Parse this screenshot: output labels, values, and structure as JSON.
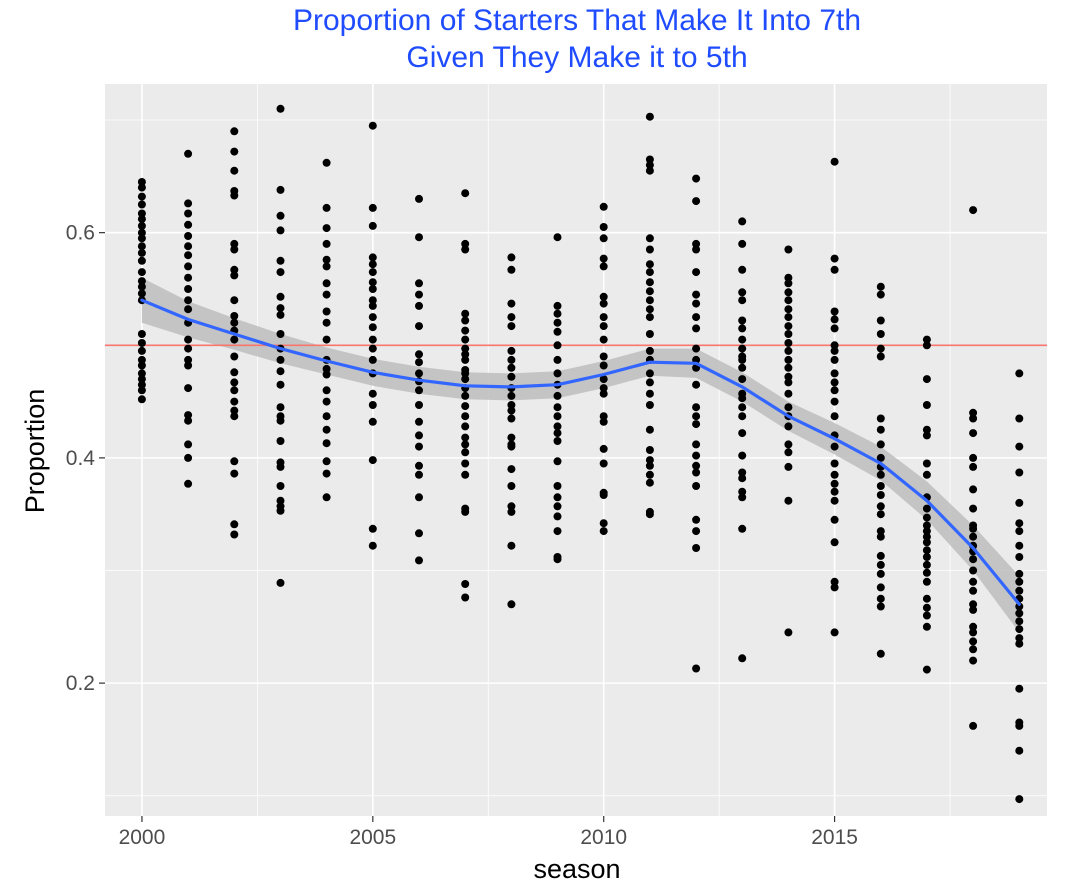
{
  "chart_data": {
    "type": "scatter",
    "title_lines": [
      "Proportion of Starters That Make It Into 7th",
      "Given They Make it to 5th"
    ],
    "xlabel": "season",
    "ylabel": "Proportion",
    "xlim": [
      1999.2,
      2019.6
    ],
    "ylim": [
      0.082,
      0.732
    ],
    "x_ticks": [
      2000,
      2005,
      2010,
      2015
    ],
    "x_tick_labels": [
      "2000",
      "2005",
      "2010",
      "2015"
    ],
    "y_ticks": [
      0.2,
      0.4,
      0.6
    ],
    "y_tick_labels": [
      "0.2",
      "0.4",
      "0.6"
    ],
    "grid": true,
    "reference_line": {
      "y": 0.5,
      "color": "#f8766d"
    },
    "colors": {
      "panel": "#ebebeb",
      "grid": "#ffffff",
      "points": "#000000",
      "smooth_line": "#3366ff",
      "confidence_band": "#bdbdbd",
      "title": "#1f4cff"
    },
    "smooth": {
      "x": [
        2000,
        2001,
        2002,
        2003,
        2004,
        2005,
        2006,
        2007,
        2008,
        2009,
        2010,
        2011,
        2012,
        2013,
        2014,
        2015,
        2016,
        2017,
        2018,
        2019
      ],
      "y": [
        0.54,
        0.523,
        0.51,
        0.497,
        0.486,
        0.476,
        0.469,
        0.464,
        0.463,
        0.465,
        0.474,
        0.485,
        0.484,
        0.463,
        0.437,
        0.417,
        0.395,
        0.362,
        0.32,
        0.27
      ],
      "band": [
        0.02,
        0.016,
        0.014,
        0.013,
        0.012,
        0.012,
        0.012,
        0.012,
        0.012,
        0.012,
        0.012,
        0.012,
        0.013,
        0.013,
        0.013,
        0.014,
        0.015,
        0.017,
        0.02,
        0.025
      ]
    },
    "points": [
      {
        "x": 2000,
        "y": [
          0.645,
          0.64,
          0.632,
          0.625,
          0.617,
          0.612,
          0.606,
          0.6,
          0.595,
          0.588,
          0.582,
          0.575,
          0.565,
          0.557,
          0.552,
          0.546,
          0.54,
          0.51,
          0.502,
          0.495,
          0.487,
          0.482,
          0.475,
          0.47,
          0.465,
          0.46,
          0.452
        ]
      },
      {
        "x": 2001,
        "y": [
          0.67,
          0.626,
          0.617,
          0.607,
          0.597,
          0.588,
          0.58,
          0.57,
          0.56,
          0.55,
          0.54,
          0.532,
          0.52,
          0.505,
          0.497,
          0.487,
          0.482,
          0.462,
          0.438,
          0.433,
          0.412,
          0.4,
          0.377
        ]
      },
      {
        "x": 2002,
        "y": [
          0.69,
          0.672,
          0.655,
          0.637,
          0.633,
          0.59,
          0.585,
          0.567,
          0.562,
          0.54,
          0.526,
          0.52,
          0.513,
          0.505,
          0.49,
          0.476,
          0.467,
          0.46,
          0.45,
          0.442,
          0.437,
          0.397,
          0.386,
          0.341,
          0.332
        ]
      },
      {
        "x": 2003,
        "y": [
          0.71,
          0.638,
          0.615,
          0.602,
          0.575,
          0.565,
          0.543,
          0.533,
          0.527,
          0.51,
          0.497,
          0.487,
          0.477,
          0.465,
          0.445,
          0.437,
          0.433,
          0.415,
          0.396,
          0.392,
          0.375,
          0.362,
          0.357,
          0.353,
          0.289
        ]
      },
      {
        "x": 2004,
        "y": [
          0.662,
          0.622,
          0.604,
          0.59,
          0.576,
          0.57,
          0.555,
          0.545,
          0.53,
          0.52,
          0.505,
          0.487,
          0.479,
          0.474,
          0.46,
          0.45,
          0.437,
          0.425,
          0.413,
          0.397,
          0.386,
          0.365
        ]
      },
      {
        "x": 2005,
        "y": [
          0.695,
          0.622,
          0.606,
          0.578,
          0.572,
          0.565,
          0.556,
          0.55,
          0.54,
          0.535,
          0.525,
          0.516,
          0.505,
          0.497,
          0.487,
          0.475,
          0.457,
          0.447,
          0.432,
          0.398,
          0.337,
          0.322
        ]
      },
      {
        "x": 2006,
        "y": [
          0.63,
          0.596,
          0.555,
          0.545,
          0.535,
          0.517,
          0.492,
          0.485,
          0.475,
          0.468,
          0.46,
          0.447,
          0.432,
          0.42,
          0.41,
          0.393,
          0.385,
          0.365,
          0.333,
          0.309
        ]
      },
      {
        "x": 2007,
        "y": [
          0.635,
          0.59,
          0.585,
          0.528,
          0.522,
          0.513,
          0.505,
          0.497,
          0.492,
          0.487,
          0.478,
          0.475,
          0.47,
          0.462,
          0.455,
          0.446,
          0.437,
          0.428,
          0.418,
          0.412,
          0.405,
          0.395,
          0.385,
          0.355,
          0.352,
          0.288,
          0.276
        ]
      },
      {
        "x": 2008,
        "y": [
          0.578,
          0.567,
          0.537,
          0.525,
          0.517,
          0.495,
          0.487,
          0.48,
          0.472,
          0.462,
          0.455,
          0.447,
          0.442,
          0.435,
          0.418,
          0.412,
          0.41,
          0.39,
          0.375,
          0.357,
          0.352,
          0.322,
          0.27
        ]
      },
      {
        "x": 2009,
        "y": [
          0.596,
          0.535,
          0.528,
          0.52,
          0.512,
          0.5,
          0.487,
          0.475,
          0.465,
          0.455,
          0.445,
          0.437,
          0.428,
          0.422,
          0.415,
          0.397,
          0.375,
          0.365,
          0.357,
          0.348,
          0.335,
          0.312,
          0.31
        ]
      },
      {
        "x": 2010,
        "y": [
          0.623,
          0.605,
          0.595,
          0.577,
          0.57,
          0.543,
          0.537,
          0.525,
          0.517,
          0.505,
          0.49,
          0.482,
          0.47,
          0.462,
          0.457,
          0.437,
          0.432,
          0.408,
          0.395,
          0.369,
          0.367,
          0.342,
          0.335
        ]
      },
      {
        "x": 2011,
        "y": [
          0.703,
          0.665,
          0.66,
          0.655,
          0.595,
          0.585,
          0.572,
          0.565,
          0.556,
          0.548,
          0.54,
          0.532,
          0.525,
          0.51,
          0.495,
          0.487,
          0.475,
          0.467,
          0.457,
          0.447,
          0.425,
          0.407,
          0.398,
          0.393,
          0.385,
          0.378,
          0.352,
          0.35
        ]
      },
      {
        "x": 2012,
        "y": [
          0.648,
          0.628,
          0.59,
          0.585,
          0.565,
          0.545,
          0.537,
          0.525,
          0.515,
          0.497,
          0.487,
          0.48,
          0.465,
          0.445,
          0.437,
          0.43,
          0.412,
          0.402,
          0.393,
          0.387,
          0.375,
          0.345,
          0.335,
          0.32,
          0.213
        ]
      },
      {
        "x": 2013,
        "y": [
          0.61,
          0.59,
          0.567,
          0.547,
          0.54,
          0.522,
          0.515,
          0.505,
          0.497,
          0.49,
          0.487,
          0.48,
          0.47,
          0.457,
          0.453,
          0.445,
          0.437,
          0.422,
          0.402,
          0.387,
          0.382,
          0.37,
          0.365,
          0.337,
          0.222
        ]
      },
      {
        "x": 2014,
        "y": [
          0.585,
          0.56,
          0.555,
          0.547,
          0.54,
          0.532,
          0.525,
          0.517,
          0.51,
          0.502,
          0.495,
          0.487,
          0.48,
          0.472,
          0.467,
          0.457,
          0.445,
          0.437,
          0.428,
          0.412,
          0.405,
          0.392,
          0.362,
          0.245
        ]
      },
      {
        "x": 2015,
        "y": [
          0.663,
          0.577,
          0.567,
          0.53,
          0.523,
          0.515,
          0.5,
          0.495,
          0.487,
          0.475,
          0.467,
          0.46,
          0.45,
          0.437,
          0.42,
          0.41,
          0.395,
          0.385,
          0.377,
          0.37,
          0.362,
          0.345,
          0.325,
          0.29,
          0.285,
          0.245
        ]
      },
      {
        "x": 2016,
        "y": [
          0.552,
          0.545,
          0.522,
          0.51,
          0.497,
          0.49,
          0.435,
          0.425,
          0.412,
          0.4,
          0.392,
          0.385,
          0.375,
          0.367,
          0.357,
          0.35,
          0.335,
          0.33,
          0.313,
          0.305,
          0.297,
          0.285,
          0.275,
          0.268,
          0.226
        ]
      },
      {
        "x": 2017,
        "y": [
          0.505,
          0.5,
          0.47,
          0.447,
          0.425,
          0.42,
          0.395,
          0.385,
          0.365,
          0.355,
          0.347,
          0.34,
          0.335,
          0.33,
          0.325,
          0.318,
          0.312,
          0.305,
          0.298,
          0.29,
          0.275,
          0.267,
          0.26,
          0.25,
          0.212
        ]
      },
      {
        "x": 2018,
        "y": [
          0.62,
          0.44,
          0.435,
          0.422,
          0.4,
          0.392,
          0.372,
          0.355,
          0.34,
          0.337,
          0.33,
          0.322,
          0.317,
          0.31,
          0.3,
          0.29,
          0.282,
          0.27,
          0.265,
          0.25,
          0.245,
          0.237,
          0.23,
          0.22,
          0.162
        ]
      },
      {
        "x": 2019,
        "y": [
          0.475,
          0.435,
          0.41,
          0.387,
          0.36,
          0.342,
          0.335,
          0.322,
          0.312,
          0.297,
          0.29,
          0.282,
          0.275,
          0.268,
          0.262,
          0.255,
          0.248,
          0.24,
          0.235,
          0.195,
          0.165,
          0.162,
          0.14,
          0.097
        ]
      }
    ]
  }
}
